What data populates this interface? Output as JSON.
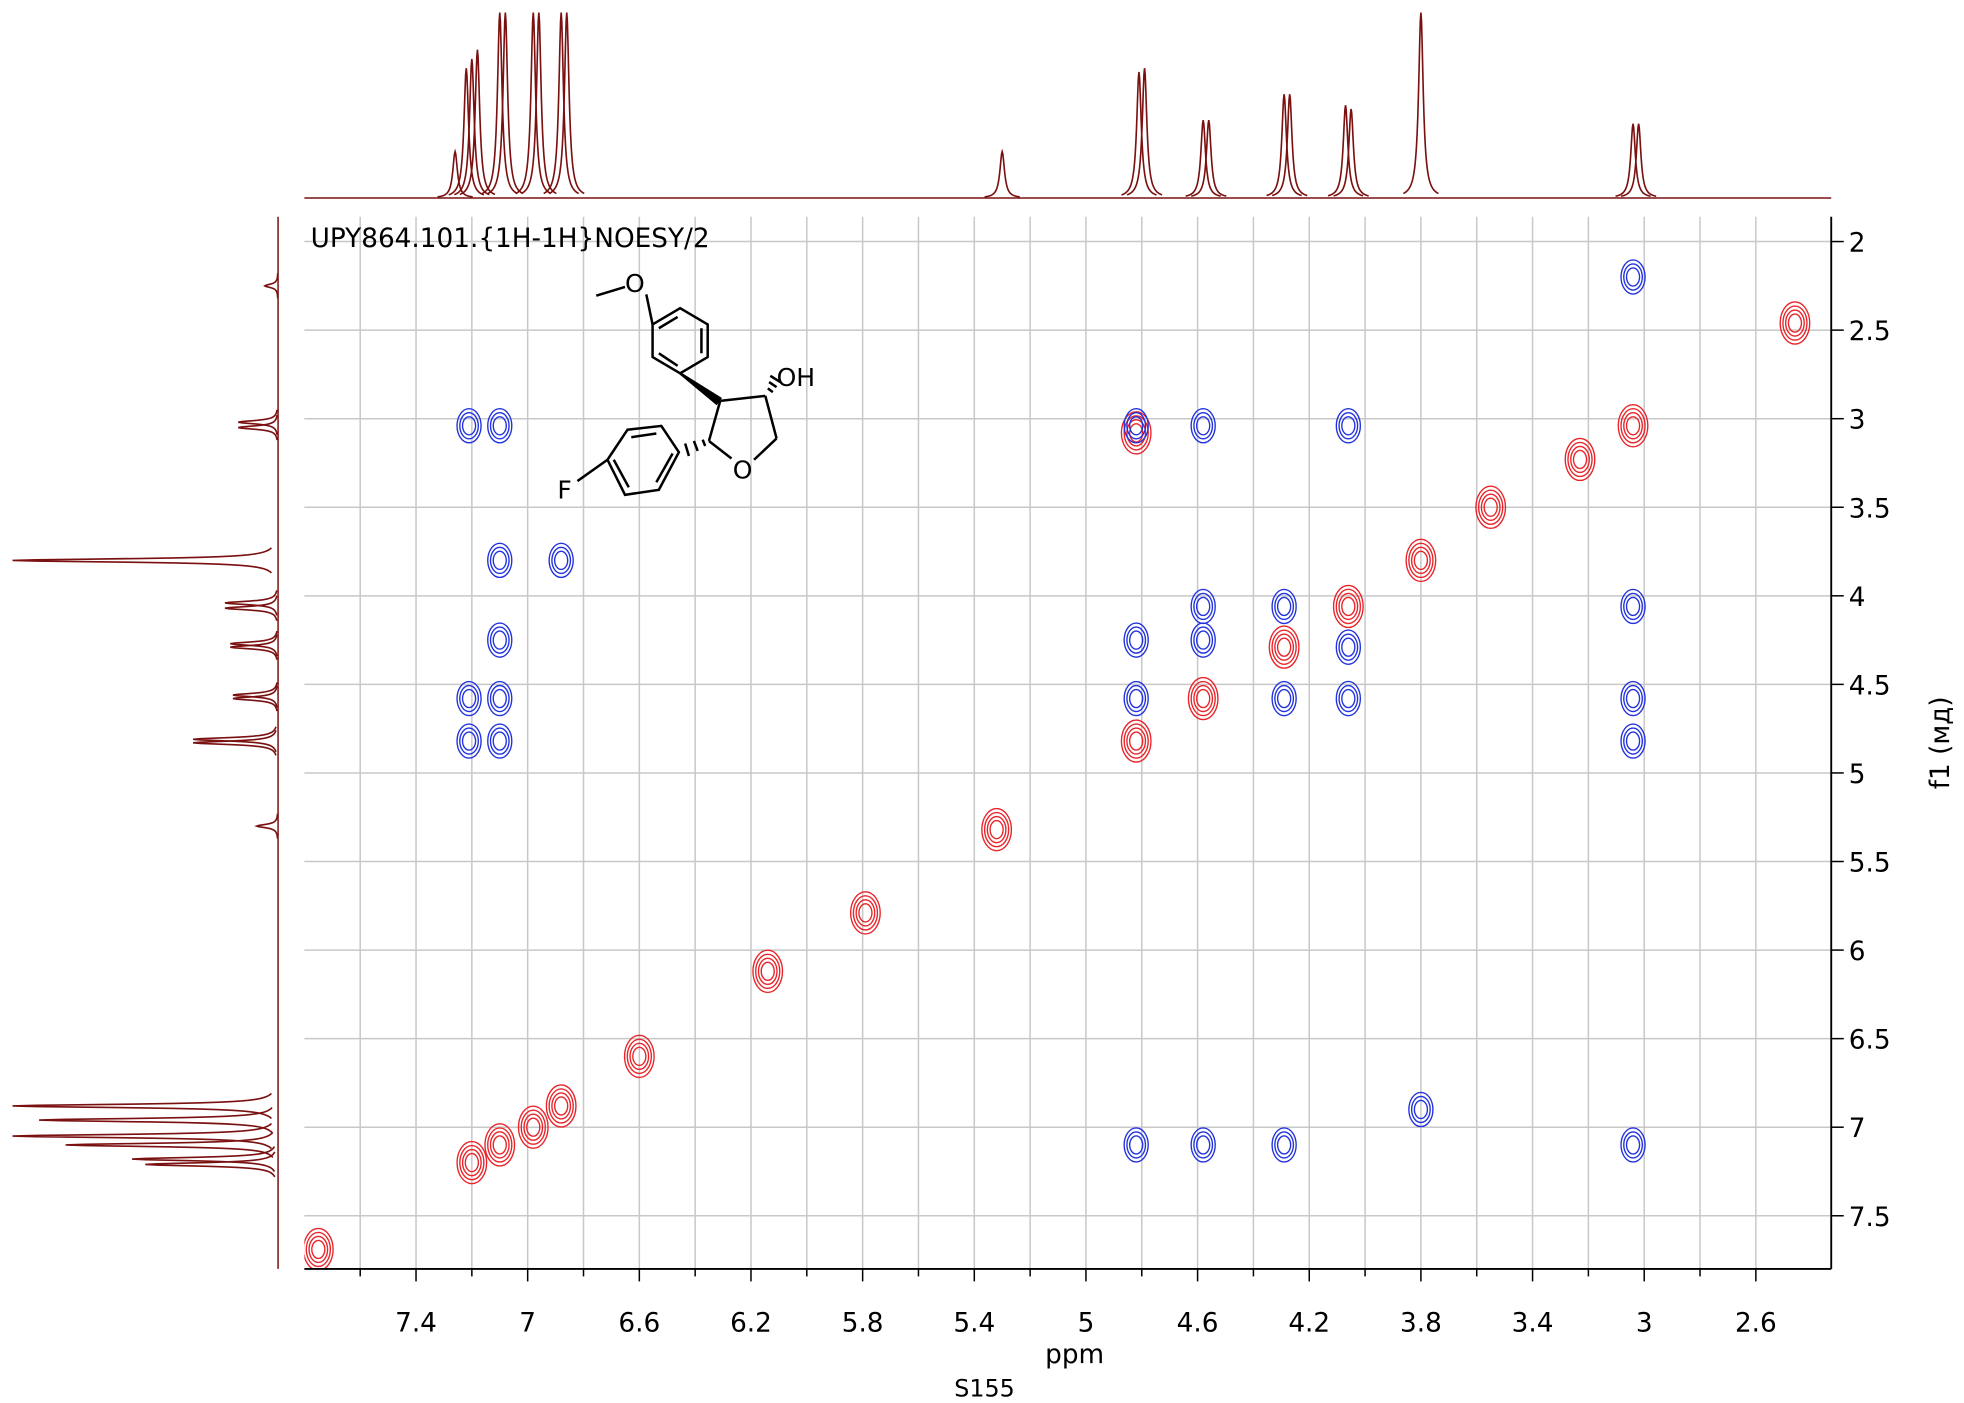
{
  "chart_data": {
    "type": "contour",
    "title": "UPY864.101.{1H-1H}NOESY/2",
    "xlabel": "ppm",
    "ylabel": "f1 (мд)",
    "annotations": [
      "OH",
      "O",
      "F"
    ],
    "xlim": [
      7.8,
      2.33
    ],
    "ylim": [
      1.86,
      7.8
    ],
    "xticks": [
      7.4,
      7.0,
      6.6,
      6.2,
      5.8,
      5.4,
      5.0,
      4.6,
      4.2,
      3.8,
      3.4,
      3.0,
      2.6
    ],
    "xminor": [
      7.6,
      7.2,
      6.8,
      6.4,
      6.0,
      5.6,
      5.2,
      4.8,
      4.4,
      4.0,
      3.6,
      3.2,
      2.8
    ],
    "yticks": [
      2.0,
      2.5,
      3.0,
      3.5,
      4.0,
      4.5,
      5.0,
      5.5,
      6.0,
      6.5,
      7.0,
      7.5
    ],
    "grid": true,
    "series": [
      {
        "color": "#e8252a",
        "x": [
          7.75,
          7.2,
          7.1,
          6.98,
          6.88,
          6.6,
          6.14,
          5.79,
          5.32,
          4.82,
          4.58,
          4.29,
          4.06,
          3.8,
          3.04,
          2.46,
          4.82,
          3.55,
          3.23
        ],
        "y": [
          7.69,
          7.2,
          7.1,
          7.0,
          6.88,
          6.6,
          6.12,
          5.79,
          5.32,
          4.82,
          4.58,
          4.29,
          4.06,
          3.8,
          3.04,
          2.46,
          3.08,
          3.5,
          3.23
        ]
      },
      {
        "color": "#2233dd",
        "x": [
          7.21,
          7.1,
          4.82,
          4.58,
          4.06,
          3.04,
          6.88,
          7.1,
          7.1,
          7.1,
          7.1,
          7.21,
          4.82,
          4.82,
          4.58,
          4.58,
          4.29,
          4.29,
          4.06,
          4.06,
          3.04,
          3.04,
          3.04,
          4.82,
          4.58,
          3.04,
          3.8,
          4.29,
          7.21
        ],
        "y": [
          3.04,
          3.04,
          3.04,
          3.04,
          3.04,
          2.2,
          3.8,
          3.8,
          4.25,
          4.58,
          4.82,
          4.82,
          4.25,
          4.58,
          4.06,
          4.25,
          4.06,
          4.58,
          4.29,
          4.58,
          4.58,
          4.82,
          4.06,
          7.1,
          7.1,
          7.1,
          6.9,
          7.1,
          4.58
        ]
      }
    ],
    "top_projection": {
      "color": "#7a1010",
      "x": [
        7.26,
        7.22,
        7.2,
        7.18,
        7.1,
        7.08,
        6.98,
        6.96,
        6.88,
        6.86,
        5.3,
        4.81,
        4.79,
        4.58,
        4.56,
        4.29,
        4.27,
        4.07,
        4.05,
        3.8,
        3.04,
        3.02
      ],
      "heights": [
        25,
        70,
        75,
        80,
        100,
        100,
        100,
        100,
        100,
        100,
        25,
        68,
        70,
        42,
        42,
        56,
        56,
        50,
        48,
        100,
        40,
        40
      ]
    },
    "left_projection": {
      "color": "#7a1010",
      "y": [
        2.25,
        3.02,
        3.05,
        3.8,
        4.04,
        4.07,
        4.27,
        4.29,
        4.56,
        4.58,
        4.81,
        4.83,
        5.3,
        6.88,
        6.96,
        7.05,
        7.1,
        7.18,
        7.21
      ],
      "heights": [
        5,
        15,
        15,
        100,
        20,
        20,
        18,
        18,
        17,
        17,
        32,
        32,
        8,
        100,
        90,
        100,
        80,
        55,
        50
      ]
    }
  },
  "page_number": "S155"
}
